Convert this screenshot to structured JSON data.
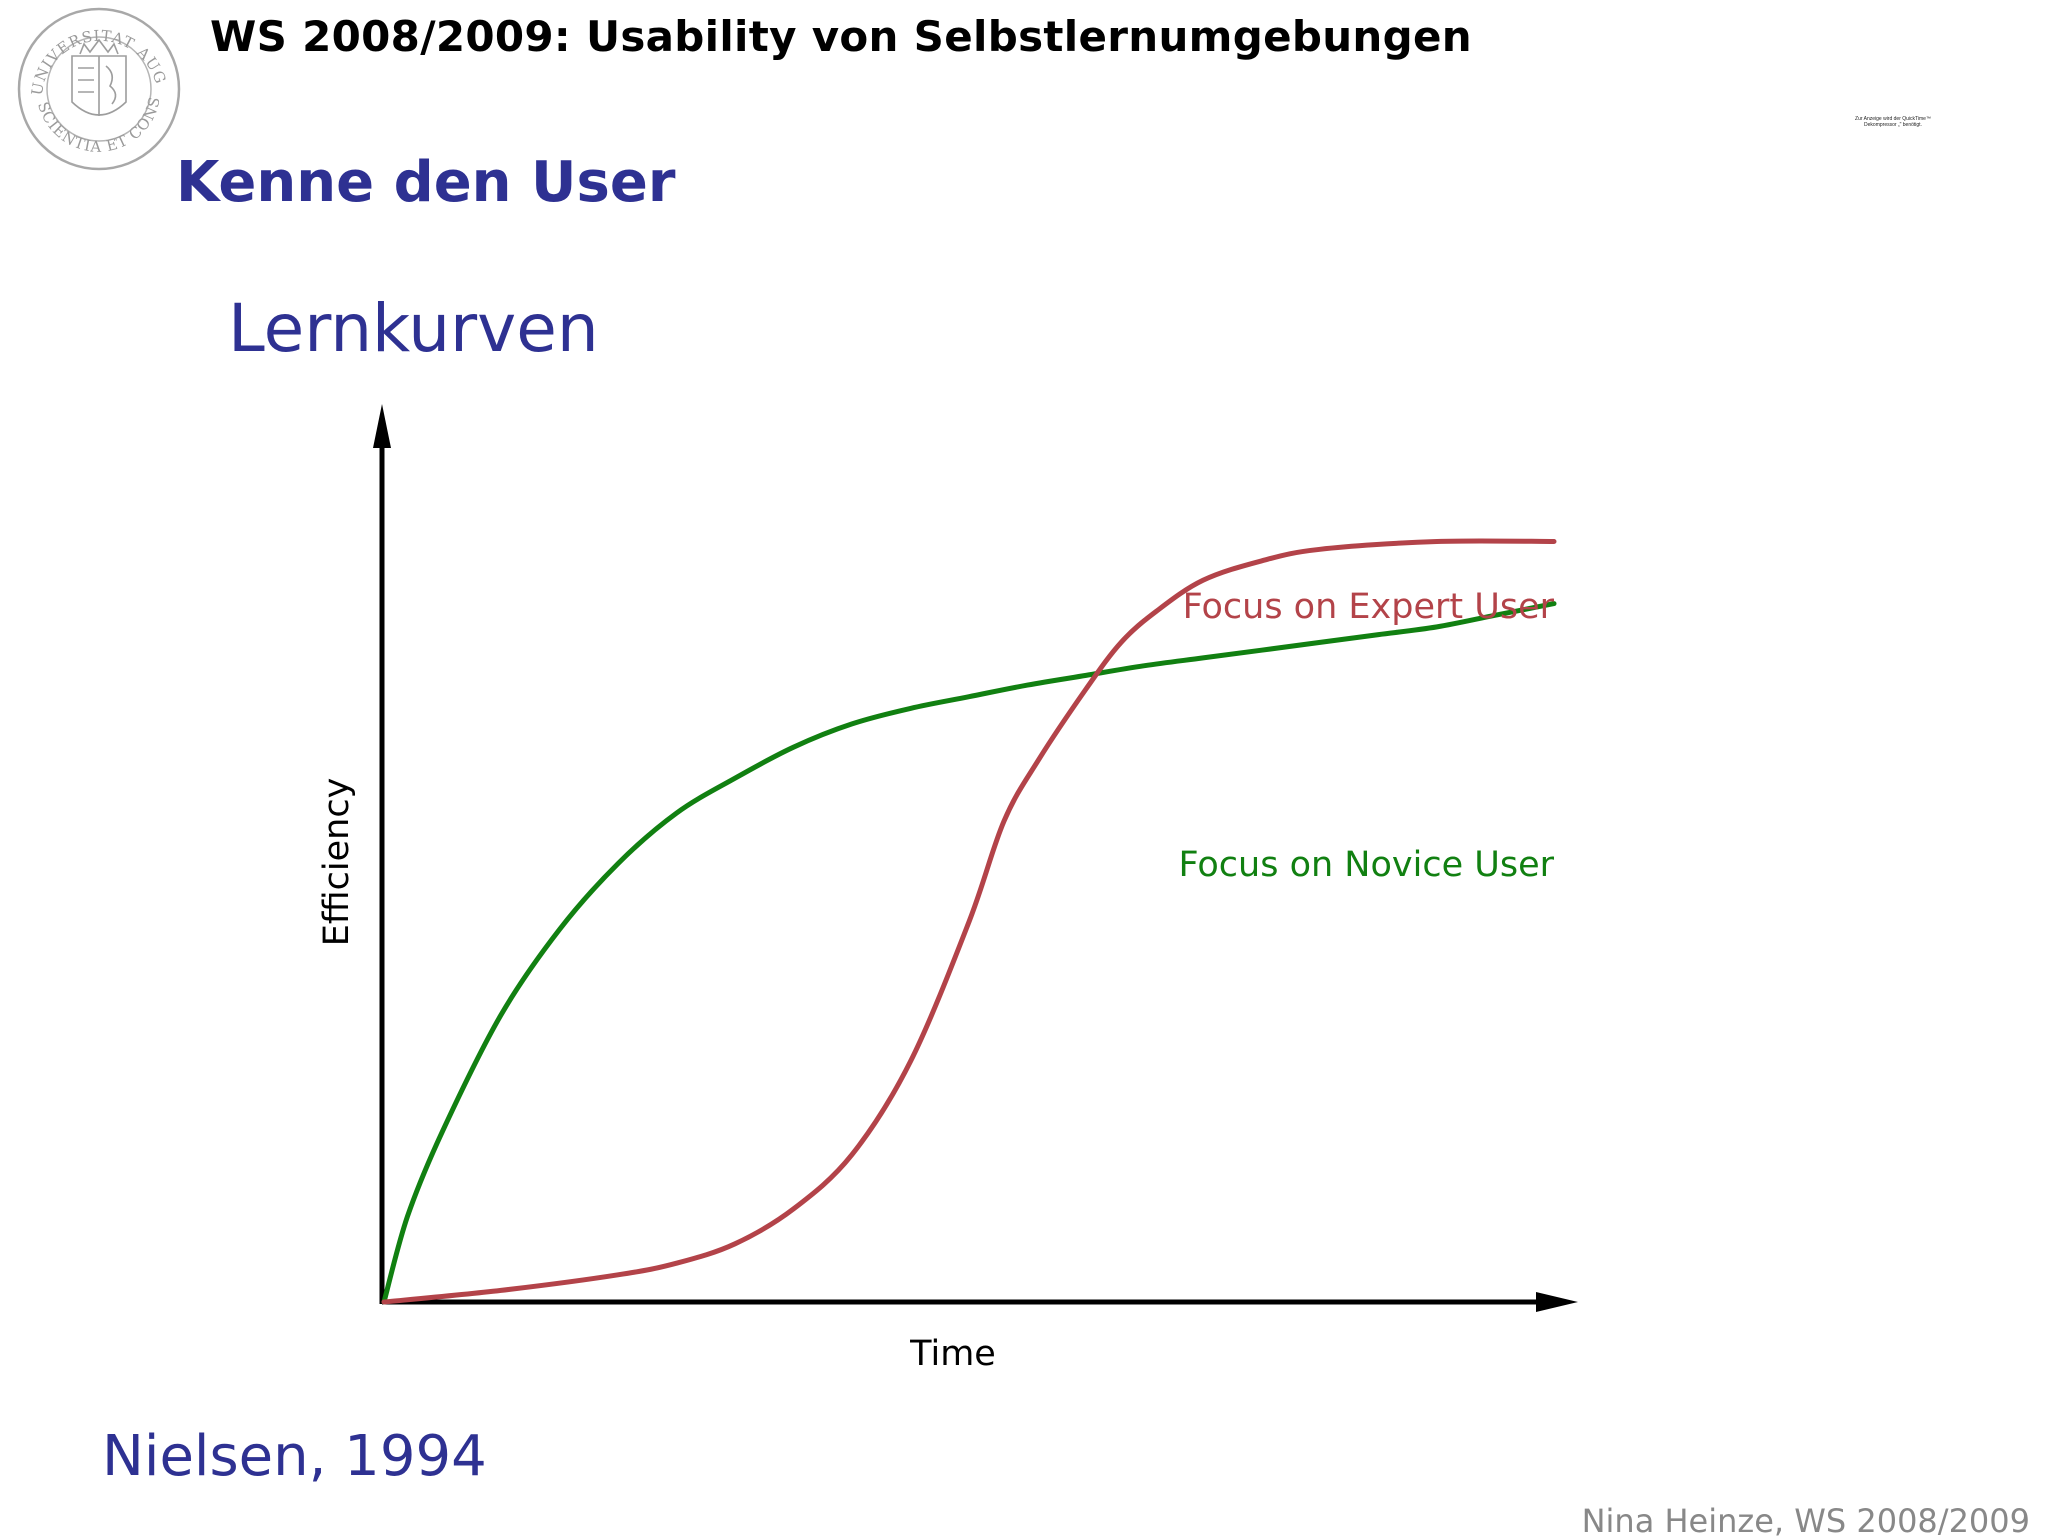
{
  "header": {
    "title": "WS 2008/2009: Usability von Selbstlernumgebungen",
    "seal_text_top": "UNIVERSITAT AUGSBURG",
    "seal_text_bottom": "SCIENTIA ET CONSCIENTIA"
  },
  "qt_note": {
    "lines": [
      "Zur Anzeige wird der QuickTime™",
      "Dekompressor „\" benötigt."
    ]
  },
  "slide": {
    "title": "Kenne den User",
    "subtitle": "Lernkurven",
    "citation": "Nielsen, 1994",
    "footer": "Nina Heinze, WS  2008/2009"
  },
  "colors": {
    "title_blue": "#2e3192",
    "expert": "#b34349",
    "novice": "#118011",
    "axis": "#000000",
    "footer_gray": "#888888"
  },
  "chart_data": {
    "type": "line",
    "xlabel": "Time",
    "ylabel": "Efficiency",
    "xlim": [
      0,
      100
    ],
    "ylim": [
      0,
      100
    ],
    "grid": false,
    "legend": "inline labels at right end of curves",
    "series": [
      {
        "name": "Focus on Expert User",
        "x": [
          0,
          10,
          20,
          25,
          30,
          35,
          40,
          45,
          50,
          53,
          56,
          60,
          63,
          66,
          70,
          75,
          80,
          90,
          100
        ],
        "y": [
          0,
          1.5,
          3.5,
          5,
          7.5,
          12,
          19,
          31,
          49,
          62,
          70,
          79,
          85,
          89,
          93,
          95.5,
          97,
          98,
          98
        ]
      },
      {
        "name": "Focus on Novice User",
        "x": [
          0,
          2,
          5,
          10,
          15,
          20,
          25,
          30,
          35,
          40,
          45,
          50,
          55,
          60,
          65,
          70,
          75,
          80,
          85,
          90,
          95,
          100
        ],
        "y": [
          0,
          11,
          22,
          37,
          48,
          56.5,
          63,
          67.5,
          71.5,
          74.5,
          76.5,
          78,
          79.5,
          71,
          82,
          83,
          84,
          85,
          86,
          87,
          88.5,
          90
        ]
      }
    ]
  }
}
